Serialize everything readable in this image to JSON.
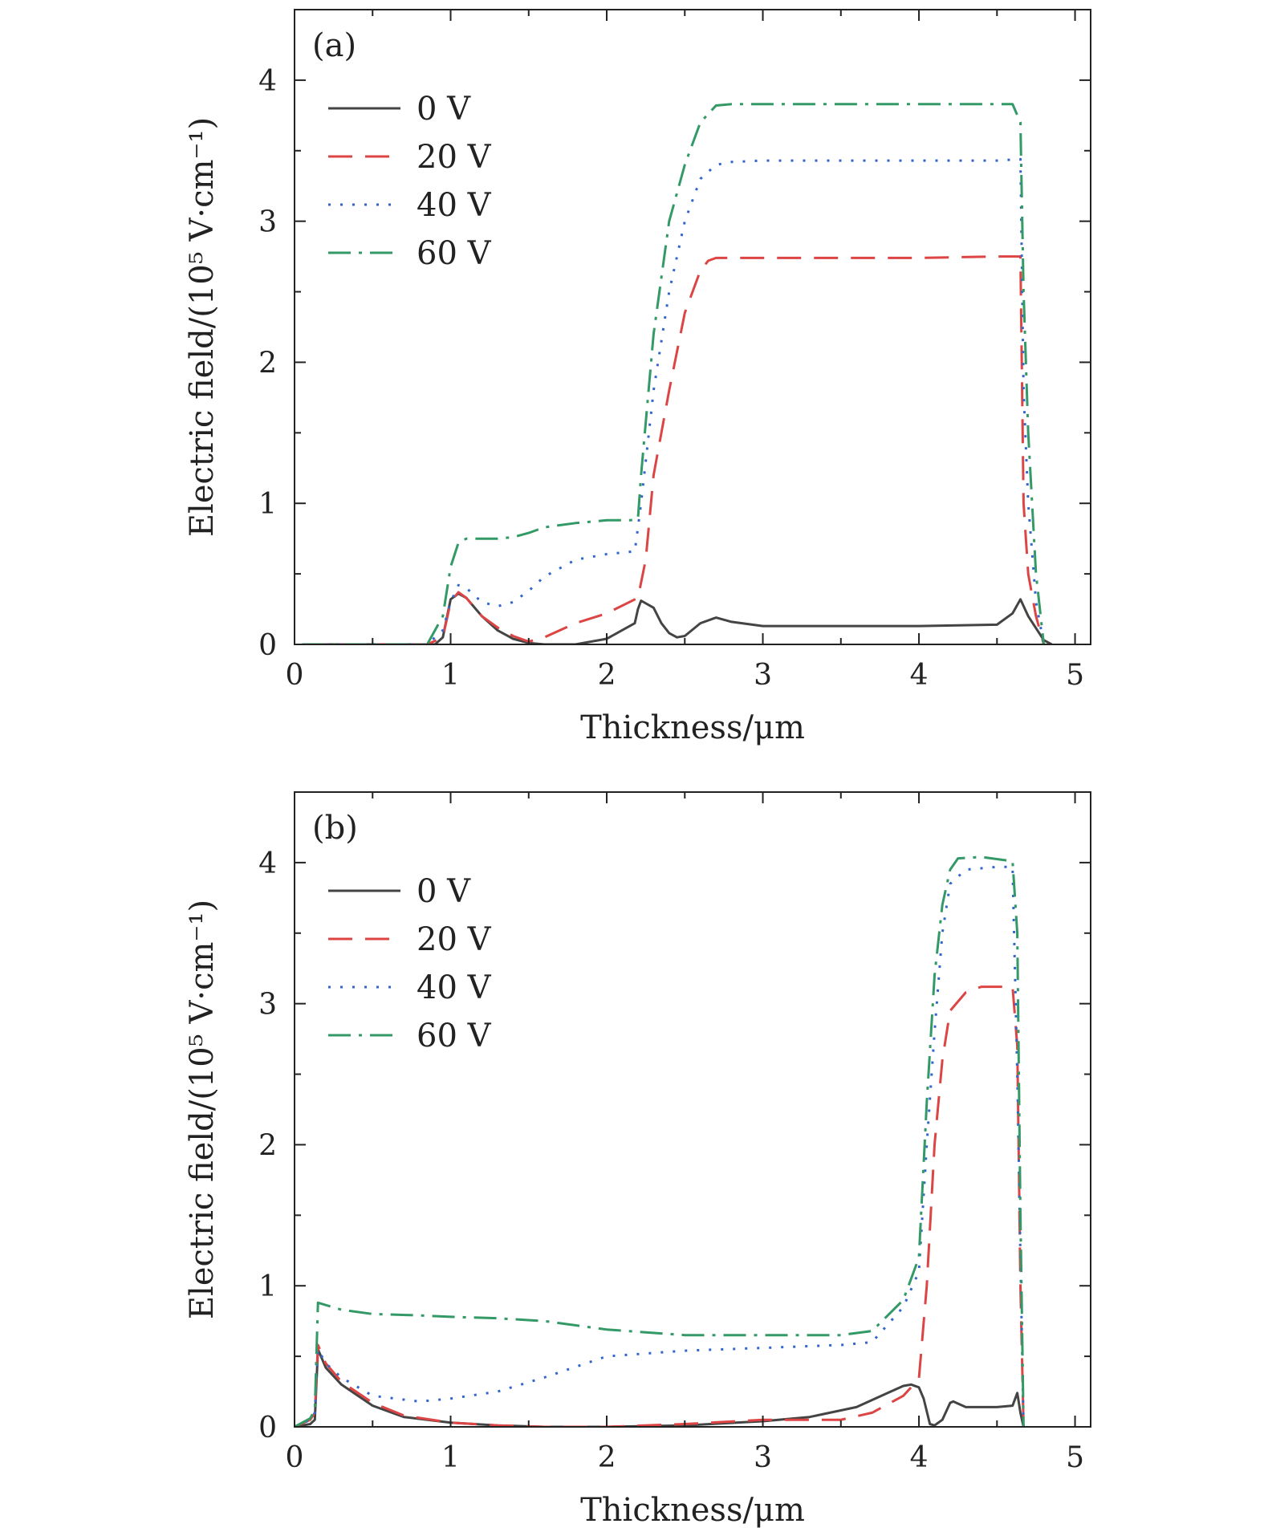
{
  "chart_data": [
    {
      "type": "line",
      "panel_label": "(a)",
      "xlabel": "Thickness/μm",
      "ylabel": "Electric field/(10⁵ V·cm⁻¹)",
      "xlim": [
        0,
        5.1
      ],
      "ylim": [
        0,
        4.5
      ],
      "xticks": [
        "0",
        "1",
        "2",
        "3",
        "4",
        "5"
      ],
      "yticks": [
        "0",
        "1",
        "2",
        "3",
        "4"
      ],
      "legend_position": "top-left",
      "grid": false,
      "series": [
        {
          "name": "0 V",
          "color": "#444444",
          "dash": "solid",
          "x": [
            0.05,
            0.9,
            0.95,
            1.0,
            1.05,
            1.1,
            1.2,
            1.3,
            1.4,
            1.5,
            1.6,
            1.8,
            2.0,
            2.18,
            2.2,
            2.22,
            2.3,
            2.35,
            2.4,
            2.45,
            2.5,
            2.6,
            2.7,
            2.8,
            3.0,
            3.5,
            4.0,
            4.5,
            4.6,
            4.65,
            4.7,
            4.8,
            4.85
          ],
          "y": [
            0,
            0,
            0.05,
            0.32,
            0.36,
            0.33,
            0.2,
            0.1,
            0.04,
            0.01,
            0,
            0,
            0.04,
            0.15,
            0.25,
            0.31,
            0.26,
            0.15,
            0.08,
            0.05,
            0.06,
            0.15,
            0.19,
            0.16,
            0.13,
            0.13,
            0.13,
            0.14,
            0.22,
            0.32,
            0.2,
            0.03,
            0
          ]
        },
        {
          "name": "20 V",
          "color": "#dd4444",
          "dash": "long-dash",
          "x": [
            0.05,
            0.85,
            0.95,
            1.0,
            1.05,
            1.1,
            1.2,
            1.3,
            1.4,
            1.5,
            1.6,
            1.8,
            2.0,
            2.2,
            2.25,
            2.3,
            2.4,
            2.5,
            2.6,
            2.65,
            2.7,
            2.8,
            3.0,
            3.5,
            4.0,
            4.5,
            4.65,
            4.67,
            4.7,
            4.75,
            4.8
          ],
          "y": [
            0,
            0,
            0.05,
            0.3,
            0.37,
            0.33,
            0.2,
            0.12,
            0.06,
            0.02,
            0.05,
            0.15,
            0.22,
            0.33,
            0.6,
            1.2,
            1.8,
            2.35,
            2.65,
            2.72,
            2.74,
            2.74,
            2.74,
            2.74,
            2.74,
            2.75,
            2.75,
            1.0,
            0.5,
            0.2,
            0
          ]
        },
        {
          "name": "40 V",
          "color": "#3366cc",
          "dash": "dotted",
          "x": [
            0.05,
            0.85,
            0.95,
            1.0,
            1.05,
            1.1,
            1.2,
            1.3,
            1.4,
            1.5,
            1.6,
            1.8,
            2.0,
            2.18,
            2.22,
            2.3,
            2.4,
            2.5,
            2.6,
            2.7,
            2.8,
            3.0,
            3.5,
            4.0,
            4.5,
            4.65,
            4.67,
            4.7,
            4.75,
            4.8
          ],
          "y": [
            0,
            0,
            0.1,
            0.3,
            0.42,
            0.4,
            0.3,
            0.27,
            0.3,
            0.38,
            0.48,
            0.6,
            0.64,
            0.66,
            1.0,
            1.8,
            2.5,
            3.0,
            3.3,
            3.4,
            3.42,
            3.43,
            3.43,
            3.43,
            3.43,
            3.44,
            1.8,
            1.0,
            0.3,
            0
          ]
        },
        {
          "name": "60 V",
          "color": "#339966",
          "dash": "dash-dot",
          "x": [
            0.05,
            0.85,
            0.95,
            1.0,
            1.05,
            1.1,
            1.2,
            1.3,
            1.4,
            1.5,
            1.6,
            1.8,
            2.0,
            2.15,
            2.2,
            2.22,
            2.3,
            2.4,
            2.5,
            2.6,
            2.7,
            2.8,
            3.0,
            3.5,
            4.0,
            4.5,
            4.6,
            4.65,
            4.67,
            4.7,
            4.75,
            4.8
          ],
          "y": [
            0,
            0,
            0.2,
            0.55,
            0.72,
            0.75,
            0.75,
            0.75,
            0.76,
            0.79,
            0.83,
            0.86,
            0.88,
            0.88,
            0.89,
            1.2,
            2.2,
            3.0,
            3.4,
            3.7,
            3.82,
            3.83,
            3.83,
            3.83,
            3.83,
            3.83,
            3.83,
            3.7,
            2.5,
            1.5,
            0.5,
            0
          ]
        }
      ]
    },
    {
      "type": "line",
      "panel_label": "(b)",
      "xlabel": "Thickness/μm",
      "ylabel": "Electric field/(10⁵ V·cm⁻¹)",
      "xlim": [
        0,
        5.1
      ],
      "ylim": [
        0,
        4.5
      ],
      "xticks": [
        "0",
        "1",
        "2",
        "3",
        "4",
        "5"
      ],
      "yticks": [
        "0",
        "1",
        "2",
        "3",
        "4"
      ],
      "legend_position": "top-left",
      "grid": false,
      "series": [
        {
          "name": "0 V",
          "color": "#444444",
          "dash": "solid",
          "x": [
            0.0,
            0.1,
            0.13,
            0.15,
            0.2,
            0.3,
            0.5,
            0.7,
            1.0,
            1.3,
            1.6,
            2.0,
            2.5,
            3.0,
            3.3,
            3.6,
            3.8,
            3.9,
            3.95,
            4.0,
            4.03,
            4.07,
            4.1,
            4.15,
            4.2,
            4.22,
            4.3,
            4.5,
            4.6,
            4.63,
            4.65,
            4.67
          ],
          "y": [
            0,
            0.02,
            0.05,
            0.55,
            0.42,
            0.3,
            0.15,
            0.07,
            0.03,
            0.01,
            0,
            0,
            0.01,
            0.04,
            0.07,
            0.14,
            0.24,
            0.29,
            0.3,
            0.28,
            0.2,
            0.02,
            0.01,
            0.05,
            0.17,
            0.18,
            0.14,
            0.14,
            0.15,
            0.24,
            0.1,
            0
          ]
        },
        {
          "name": "20 V",
          "color": "#dd4444",
          "dash": "long-dash",
          "x": [
            0.0,
            0.1,
            0.13,
            0.15,
            0.2,
            0.3,
            0.5,
            0.7,
            1.0,
            1.3,
            1.6,
            2.0,
            2.5,
            3.0,
            3.5,
            3.7,
            3.9,
            4.0,
            4.05,
            4.1,
            4.15,
            4.2,
            4.3,
            4.4,
            4.6,
            4.63,
            4.65,
            4.67
          ],
          "y": [
            0,
            0.05,
            0.1,
            0.58,
            0.45,
            0.32,
            0.17,
            0.08,
            0.03,
            0.01,
            0,
            0,
            0.02,
            0.05,
            0.05,
            0.1,
            0.22,
            0.34,
            1.0,
            2.0,
            2.6,
            2.95,
            3.08,
            3.12,
            3.12,
            2.7,
            1.0,
            0
          ]
        },
        {
          "name": "40 V",
          "color": "#3366cc",
          "dash": "dotted",
          "x": [
            0.0,
            0.1,
            0.13,
            0.15,
            0.2,
            0.3,
            0.5,
            0.8,
            1.0,
            1.3,
            1.6,
            2.0,
            2.5,
            3.0,
            3.5,
            3.7,
            3.9,
            4.0,
            4.05,
            4.1,
            4.15,
            4.2,
            4.3,
            4.5,
            4.6,
            4.63,
            4.65,
            4.67
          ],
          "y": [
            0,
            0.05,
            0.1,
            0.55,
            0.45,
            0.35,
            0.22,
            0.18,
            0.2,
            0.25,
            0.35,
            0.5,
            0.54,
            0.56,
            0.58,
            0.6,
            0.85,
            1.1,
            2.0,
            2.8,
            3.5,
            3.85,
            3.95,
            3.97,
            3.97,
            2.5,
            1.2,
            0
          ]
        },
        {
          "name": "60 V",
          "color": "#339966",
          "dash": "dash-dot",
          "x": [
            0.0,
            0.1,
            0.13,
            0.15,
            0.3,
            0.5,
            0.8,
            1.0,
            1.3,
            1.6,
            2.0,
            2.5,
            3.0,
            3.5,
            3.7,
            3.9,
            4.0,
            4.05,
            4.1,
            4.15,
            4.2,
            4.25,
            4.4,
            4.6,
            4.63,
            4.65,
            4.67
          ],
          "y": [
            0,
            0.06,
            0.12,
            0.88,
            0.83,
            0.8,
            0.79,
            0.78,
            0.77,
            0.75,
            0.69,
            0.65,
            0.65,
            0.65,
            0.68,
            0.9,
            1.2,
            2.3,
            3.2,
            3.7,
            3.95,
            4.03,
            4.04,
            4.01,
            3.5,
            1.5,
            0
          ]
        }
      ]
    }
  ]
}
